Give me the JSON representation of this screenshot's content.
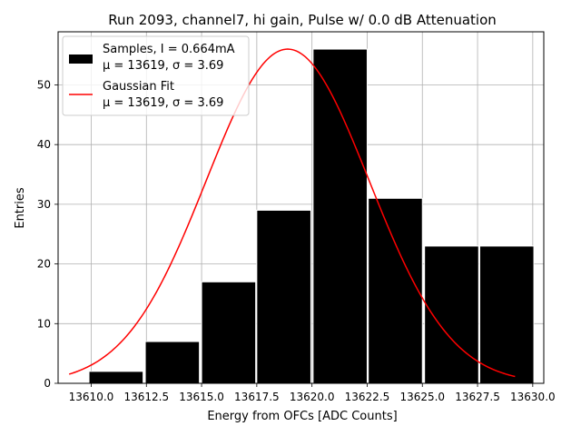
{
  "chart_data": {
    "type": "bar",
    "title": "Run 2093, channel7, hi gain, Pulse w/ 0.0 dB Attenuation",
    "xlabel": "Energy from OFCs [ADC Counts]",
    "ylabel": "Entries",
    "xlim": [
      13608.5,
      13630.5
    ],
    "ylim": [
      0,
      58.9
    ],
    "x_ticks": [
      "13610.0",
      "13612.5",
      "13615.0",
      "13617.5",
      "13620.0",
      "13622.5",
      "13625.0",
      "13627.5",
      "13630.0"
    ],
    "x_tick_values": [
      13610.0,
      13612.5,
      13615.0,
      13617.5,
      13620.0,
      13622.5,
      13625.0,
      13627.5,
      13630.0
    ],
    "y_ticks": [
      "0",
      "10",
      "20",
      "30",
      "40",
      "50"
    ],
    "y_tick_values": [
      0,
      10,
      20,
      30,
      40,
      50
    ],
    "grid": true,
    "legend_position": "top-left",
    "series": [
      {
        "name": "Samples, I = 0.664mA",
        "name_line2": "μ = 13619, σ = 3.69",
        "kind": "histogram",
        "color": "#000000",
        "edgecolor": "#ffffff",
        "bin_edges": [
          13609.9,
          13612.44,
          13614.98,
          13617.52,
          13620.06,
          13622.6,
          13625.14,
          13627.68,
          13630.22
        ],
        "bins": [
          {
            "x0": 13609.9,
            "x1": 13612.35,
            "value": 2
          },
          {
            "x0": 13612.45,
            "x1": 13614.9,
            "value": 7
          },
          {
            "x0": 13615.0,
            "x1": 13617.45,
            "value": 17
          },
          {
            "x0": 13617.5,
            "x1": 13619.95,
            "value": 29
          },
          {
            "x0": 13620.05,
            "x1": 13622.5,
            "value": 56
          },
          {
            "x0": 13622.55,
            "x1": 13625.0,
            "value": 31
          },
          {
            "x0": 13625.1,
            "x1": 13627.55,
            "value": 23
          },
          {
            "x0": 13627.6,
            "x1": 13630.05,
            "value": 23
          }
        ]
      },
      {
        "name": "Gaussian Fit",
        "name_line2": "μ = 13619, σ = 3.69",
        "kind": "line",
        "color": "#ff0000",
        "mu": 13618.9,
        "sigma": 3.69,
        "amplitude": 56,
        "x_range": [
          13609.0,
          13629.2
        ]
      }
    ]
  }
}
